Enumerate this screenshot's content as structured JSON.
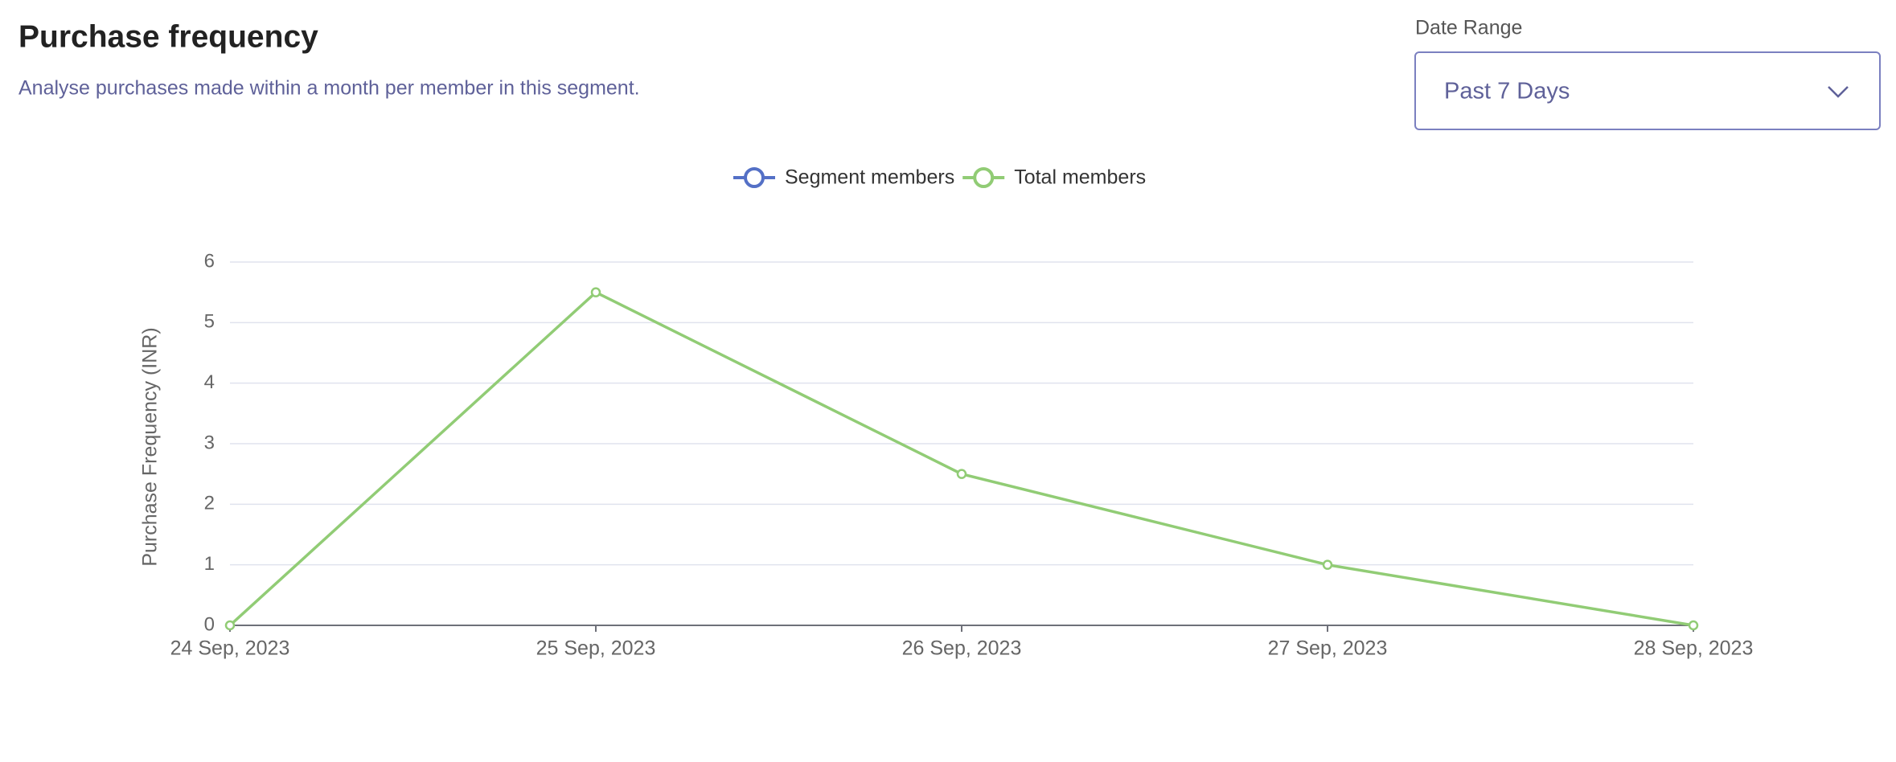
{
  "header": {
    "title": "Purchase frequency",
    "subtitle": "Analyse purchases made within a month per member in this segment."
  },
  "date_range": {
    "label": "Date Range",
    "value": "Past 7 Days"
  },
  "chart_data": {
    "type": "line",
    "categories": [
      "24 Sep, 2023",
      "25 Sep, 2023",
      "26 Sep, 2023",
      "27 Sep, 2023",
      "28 Sep, 2023"
    ],
    "ylabel": "Purchase Frequency (INR)",
    "series": [
      {
        "name": "Segment members",
        "color": "#5470c6",
        "values": [
          null,
          null,
          null,
          null,
          null
        ]
      },
      {
        "name": "Total members",
        "color": "#91cc75",
        "values": [
          0,
          5.5,
          2.5,
          1,
          0
        ]
      }
    ],
    "ylim": [
      0,
      6
    ],
    "yticks": [
      0,
      1,
      2,
      3,
      4,
      5,
      6
    ],
    "grid": true,
    "legend": "top"
  }
}
